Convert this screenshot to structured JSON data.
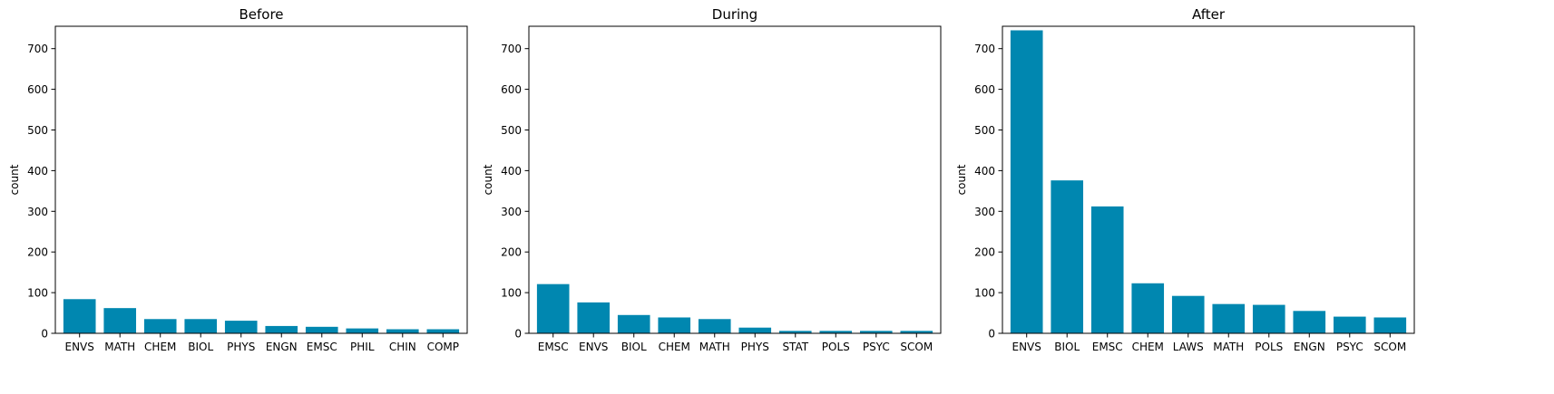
{
  "colors": {
    "bar": "#0087b0",
    "axis": "#000000",
    "background": "#ffffff"
  },
  "chart_data": [
    {
      "type": "bar",
      "title": "Before",
      "xlabel": "",
      "ylabel": "count",
      "ylim": [
        0,
        755
      ],
      "yticks": [
        0,
        100,
        200,
        300,
        400,
        500,
        600,
        700
      ],
      "grid": false,
      "categories": [
        "ENVS",
        "MATH",
        "CHEM",
        "BIOL",
        "PHYS",
        "ENGN",
        "EMSC",
        "PHIL",
        "CHIN",
        "COMP"
      ],
      "values": [
        84,
        62,
        35,
        35,
        31,
        18,
        16,
        12,
        10,
        10
      ]
    },
    {
      "type": "bar",
      "title": "During",
      "xlabel": "",
      "ylabel": "count",
      "ylim": [
        0,
        755
      ],
      "yticks": [
        0,
        100,
        200,
        300,
        400,
        500,
        600,
        700
      ],
      "grid": false,
      "categories": [
        "EMSC",
        "ENVS",
        "BIOL",
        "CHEM",
        "MATH",
        "PHYS",
        "STAT",
        "POLS",
        "PSYC",
        "SCOM"
      ],
      "values": [
        121,
        76,
        45,
        39,
        35,
        14,
        6,
        6,
        6,
        6
      ]
    },
    {
      "type": "bar",
      "title": "After",
      "xlabel": "",
      "ylabel": "count",
      "ylim": [
        0,
        755
      ],
      "yticks": [
        0,
        100,
        200,
        300,
        400,
        500,
        600,
        700
      ],
      "grid": false,
      "categories": [
        "ENVS",
        "BIOL",
        "EMSC",
        "CHEM",
        "LAWS",
        "MATH",
        "POLS",
        "ENGN",
        "PSYC",
        "SCOM"
      ],
      "values": [
        745,
        376,
        312,
        123,
        92,
        72,
        70,
        55,
        41,
        39
      ]
    }
  ]
}
